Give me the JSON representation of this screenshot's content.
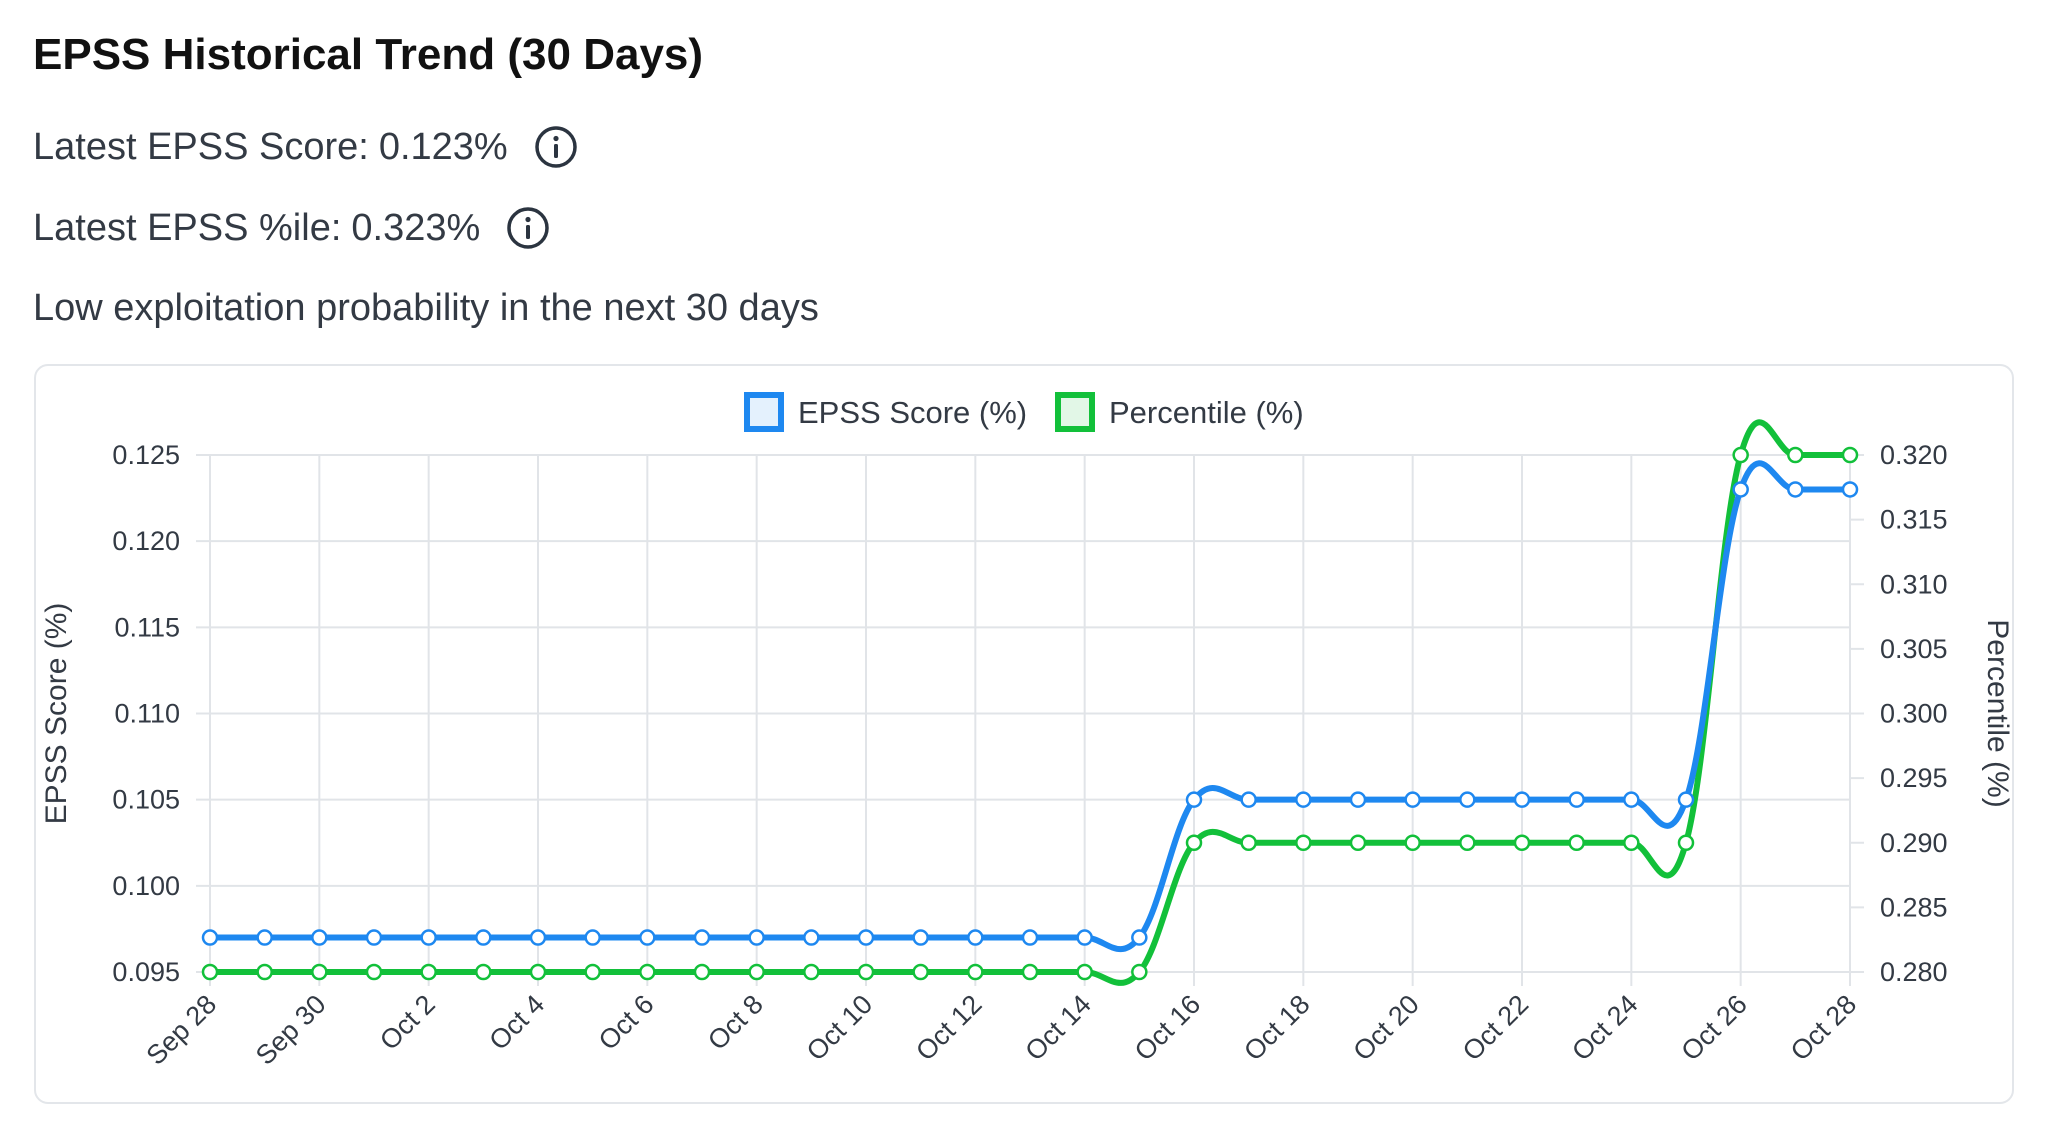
{
  "header": {
    "title": "EPSS Historical Trend (30 Days)",
    "score_label": "Latest EPSS Score:",
    "score_value": "0.123%",
    "percentile_label": "Latest EPSS %ile:",
    "percentile_value": "0.323%",
    "description": "Low exploitation probability in the next 30 days",
    "info_icon": "info-circle-icon"
  },
  "chart_data": {
    "type": "line",
    "title": "",
    "legend_position": "top-center",
    "grid": true,
    "categories": [
      "Sep 28",
      "Sep 29",
      "Sep 30",
      "Oct 1",
      "Oct 2",
      "Oct 3",
      "Oct 4",
      "Oct 5",
      "Oct 6",
      "Oct 7",
      "Oct 8",
      "Oct 9",
      "Oct 10",
      "Oct 11",
      "Oct 12",
      "Oct 13",
      "Oct 14",
      "Oct 15",
      "Oct 16",
      "Oct 17",
      "Oct 18",
      "Oct 19",
      "Oct 20",
      "Oct 21",
      "Oct 22",
      "Oct 23",
      "Oct 24",
      "Oct 25",
      "Oct 26",
      "Oct 27",
      "Oct 28"
    ],
    "x_tick_labels": [
      "Sep 28",
      "Sep 30",
      "Oct 2",
      "Oct 4",
      "Oct 6",
      "Oct 8",
      "Oct 10",
      "Oct 12",
      "Oct 14",
      "Oct 16",
      "Oct 18",
      "Oct 20",
      "Oct 22",
      "Oct 24",
      "Oct 26",
      "Oct 28"
    ],
    "y_left": {
      "label": "EPSS Score (%)",
      "lim": [
        0.095,
        0.125
      ],
      "ticks": [
        "0.125",
        "0.120",
        "0.115",
        "0.110",
        "0.105",
        "0.100",
        "0.095"
      ]
    },
    "y_right": {
      "label": "Percentile (%)",
      "lim": [
        0.28,
        0.32
      ],
      "ticks": [
        "0.320",
        "0.315",
        "0.310",
        "0.305",
        "0.300",
        "0.295",
        "0.290",
        "0.285",
        "0.280"
      ]
    },
    "series": [
      {
        "name": "EPSS Score (%)",
        "axis": "left",
        "color": "#1e88f0",
        "values": [
          0.097,
          0.097,
          0.097,
          0.097,
          0.097,
          0.097,
          0.097,
          0.097,
          0.097,
          0.097,
          0.097,
          0.097,
          0.097,
          0.097,
          0.097,
          0.097,
          0.097,
          0.097,
          0.105,
          0.105,
          0.105,
          0.105,
          0.105,
          0.105,
          0.105,
          0.105,
          0.105,
          0.105,
          0.123,
          0.123,
          0.123
        ]
      },
      {
        "name": "Percentile (%)",
        "axis": "right",
        "color": "#12c03a",
        "values": [
          0.28,
          0.28,
          0.28,
          0.28,
          0.28,
          0.28,
          0.28,
          0.28,
          0.28,
          0.28,
          0.28,
          0.28,
          0.28,
          0.28,
          0.28,
          0.28,
          0.28,
          0.28,
          0.29,
          0.29,
          0.29,
          0.29,
          0.29,
          0.29,
          0.29,
          0.29,
          0.29,
          0.29,
          0.32,
          0.32,
          0.32
        ]
      }
    ]
  }
}
